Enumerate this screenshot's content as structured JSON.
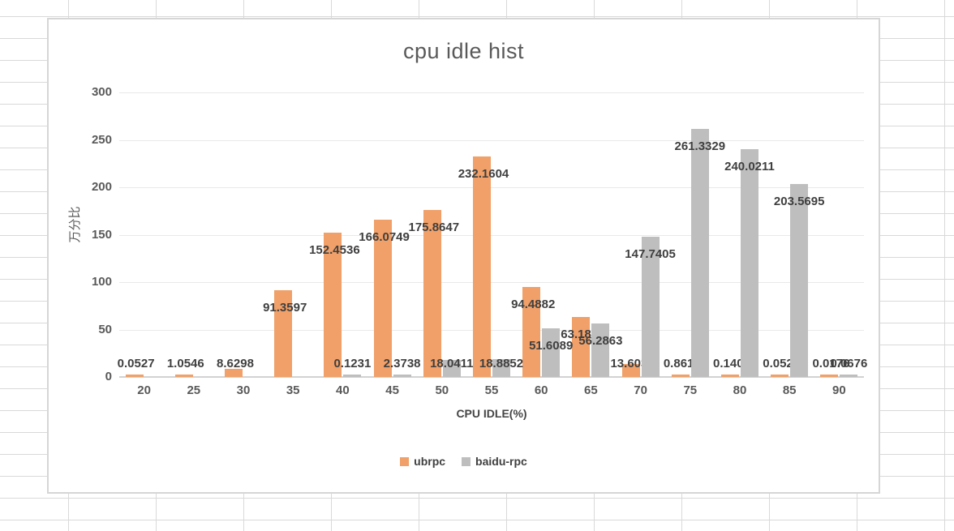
{
  "sheet": {
    "grid_color": "#D9D9D9"
  },
  "chart": {
    "title": "cpu idle hist",
    "x_axis_title": "CPU IDLE(%)",
    "y_axis_title": "万分比",
    "background": "#FFFFFF",
    "border_color": "#D6D6D6",
    "text_color": "#595959",
    "value_label_color": "#3F3F3F",
    "gridline_color": "#E9E9E9",
    "axis_line_color": "#D2D2D2"
  },
  "chart_data": {
    "type": "bar",
    "title": "cpu idle hist",
    "xlabel": "CPU IDLE(%)",
    "ylabel": "万分比",
    "categories": [
      "20",
      "25",
      "30",
      "35",
      "40",
      "45",
      "50",
      "55",
      "60",
      "65",
      "70",
      "75",
      "80",
      "85",
      "90"
    ],
    "series": [
      {
        "name": "ubrpc",
        "color": "#F0A068",
        "values": [
          0.0527,
          1.0546,
          8.6298,
          91.3597,
          152.4536,
          166.0749,
          175.8647,
          232.1604,
          94.4882,
          63.1855,
          13.6038,
          0.8612,
          0.1406,
          0.0527,
          0.0176
        ],
        "labels": [
          "0.0527",
          "1.0546",
          "8.6298",
          "91.3597",
          "152.4536",
          "166.0749",
          "175.8647",
          "232.1604",
          "94.4882",
          "63.1855",
          "13.6038",
          "0.8612",
          "0.1406",
          "0.0527",
          "0.0176"
        ]
      },
      {
        "name": "baidu-rpc",
        "color": "#BEBEBE",
        "values": [
          0,
          0,
          0,
          0,
          0.1231,
          2.3738,
          18.0411,
          18.8852,
          51.6089,
          56.2863,
          147.7405,
          261.3329,
          240.0211,
          203.5695,
          0.0676
        ],
        "labels": [
          "",
          "",
          "",
          "",
          "0.1231",
          "2.3738",
          "18.0411",
          "18.8852",
          "51.6089",
          "56.2863",
          "147.7405",
          "261.3329",
          "240.0211",
          "203.5695",
          "0.0676"
        ]
      }
    ],
    "ylim": [
      0,
      300
    ],
    "yticks": [
      0,
      50,
      100,
      150,
      200,
      250,
      300
    ],
    "grid": true,
    "legend_position": "bottom"
  }
}
